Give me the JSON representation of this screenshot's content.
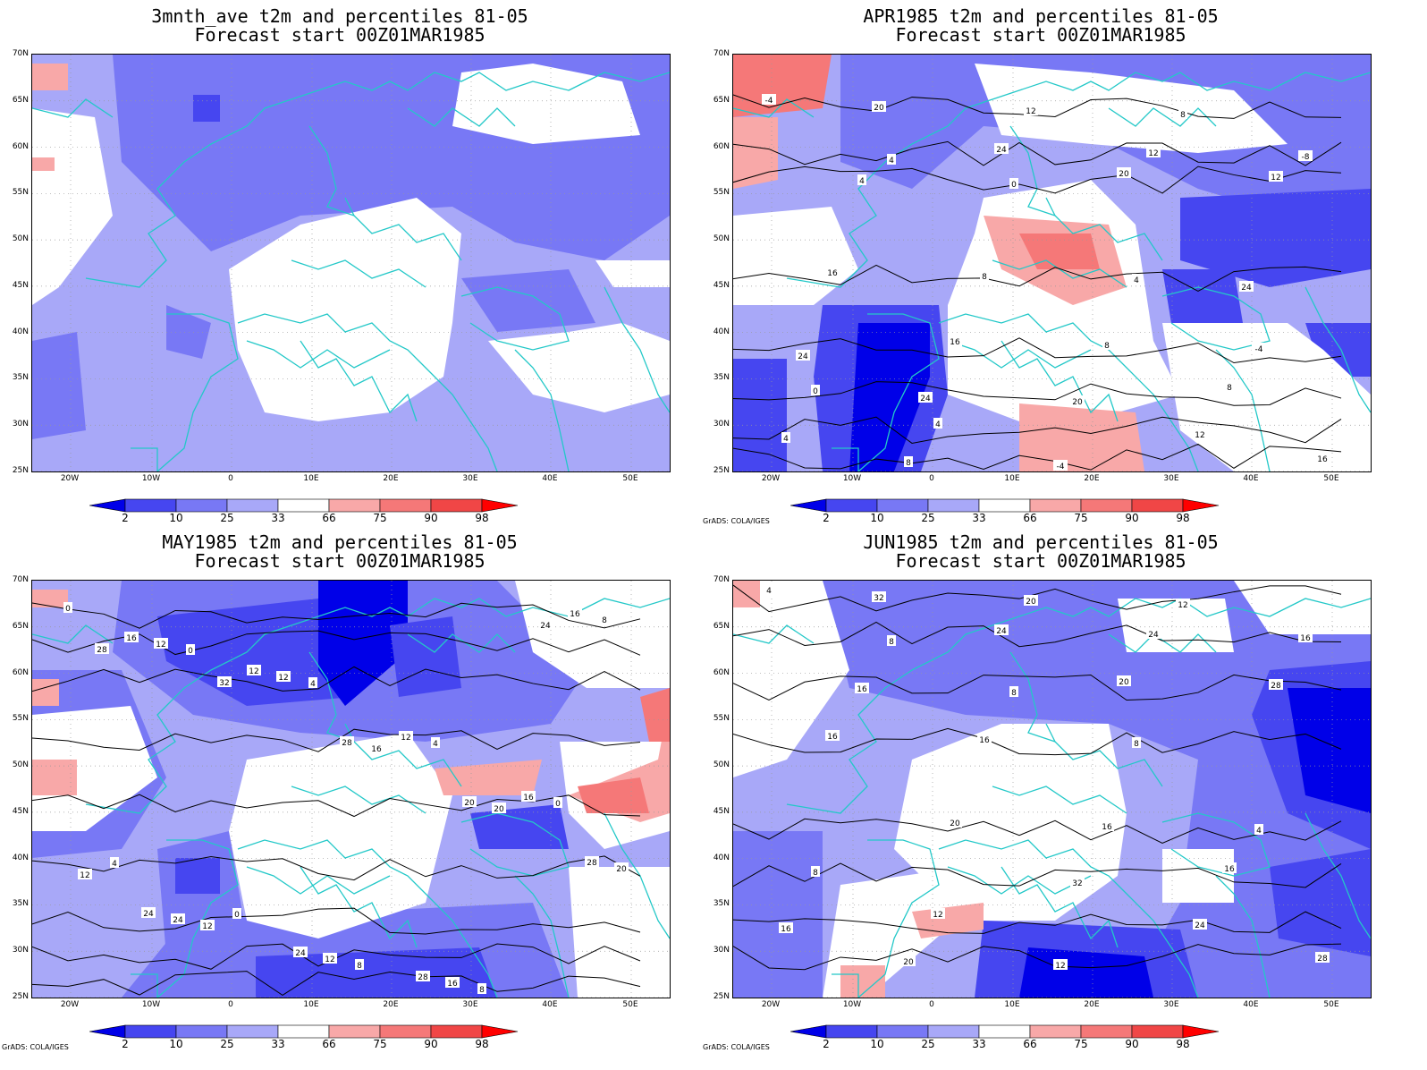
{
  "panels": [
    {
      "title1": "3mnth_ave t2m and percentiles 81-05",
      "title2": "Forecast start 00Z01MAR1985",
      "contour_labels": []
    },
    {
      "title1": "APR1985 t2m and percentiles 81-05",
      "title2": "Forecast start 00Z01MAR1985",
      "contour_labels": [
        "-4",
        "4",
        "0",
        "4",
        "-4",
        "0",
        "4",
        "-4",
        "8",
        "-8",
        "4",
        "8",
        "8",
        "8",
        "4",
        "8",
        "12",
        "12",
        "12",
        "16",
        "16",
        "20",
        "12",
        "16",
        "20",
        "24",
        "20",
        "24",
        "24",
        "24"
      ]
    },
    {
      "title1": "MAY1985 t2m and percentiles 81-05",
      "title2": "Forecast start 00Z01MAR1985",
      "contour_labels": [
        "0",
        "0",
        "4",
        "4",
        "0",
        "4",
        "0",
        "8",
        "8",
        "8",
        "12",
        "12",
        "12",
        "16",
        "12",
        "12",
        "12",
        "16",
        "16",
        "16",
        "12",
        "16",
        "20",
        "20",
        "24",
        "24",
        "28",
        "24",
        "28",
        "32",
        "28",
        "20",
        "28",
        "24"
      ]
    },
    {
      "title1": "JUN1985 t2m and percentiles 81-05",
      "title2": "Forecast start 00Z01MAR1985",
      "contour_labels": [
        "4",
        "8",
        "8",
        "8",
        "4",
        "8",
        "12",
        "12",
        "12",
        "16",
        "16",
        "16",
        "16",
        "16",
        "16",
        "20",
        "20",
        "24",
        "28",
        "16",
        "20",
        "32",
        "24",
        "28",
        "32",
        "24",
        "20"
      ]
    }
  ],
  "lat_labels": [
    "70N",
    "65N",
    "60N",
    "55N",
    "50N",
    "45N",
    "40N",
    "35N",
    "30N",
    "25N"
  ],
  "lon_labels": [
    "20W",
    "10W",
    "0",
    "10E",
    "20E",
    "30E",
    "40E",
    "50E"
  ],
  "colorbar": {
    "labels": [
      "2",
      "10",
      "25",
      "33",
      "66",
      "75",
      "90",
      "98"
    ],
    "colors": [
      "#0000e8",
      "#4646f0",
      "#7878f5",
      "#a8a8f8",
      "#ffffff",
      "#f8a8a8",
      "#f57878",
      "#f04646",
      "#ff0000"
    ]
  },
  "credit": "GrADS: COLA/IGES",
  "colors": {
    "coast": "#23c8c8",
    "contour": "#000000"
  }
}
